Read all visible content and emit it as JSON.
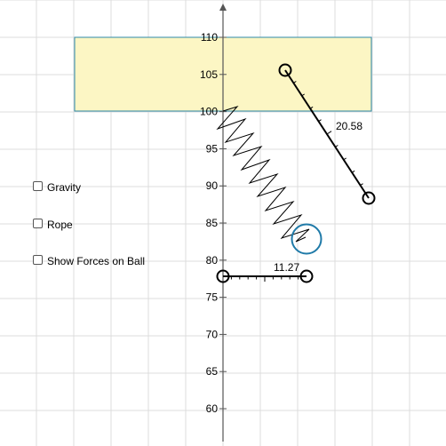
{
  "controls": {
    "gravity_label": "Gravity",
    "rope_label": "Rope",
    "show_forces_label": "Show Forces on Ball"
  },
  "axis": {
    "y_ticks": [
      "110",
      "105",
      "100",
      "95",
      "90",
      "85",
      "80",
      "75",
      "70",
      "65",
      "60"
    ]
  },
  "measurements": {
    "spring_length": "20.58",
    "ruler_length": "11.27"
  },
  "colors": {
    "grid": "#dcdcdc",
    "ceiling_fill": "#fcf6c4",
    "ceiling_border": "#2e8aa8",
    "ball": "#1f7aa8"
  }
}
